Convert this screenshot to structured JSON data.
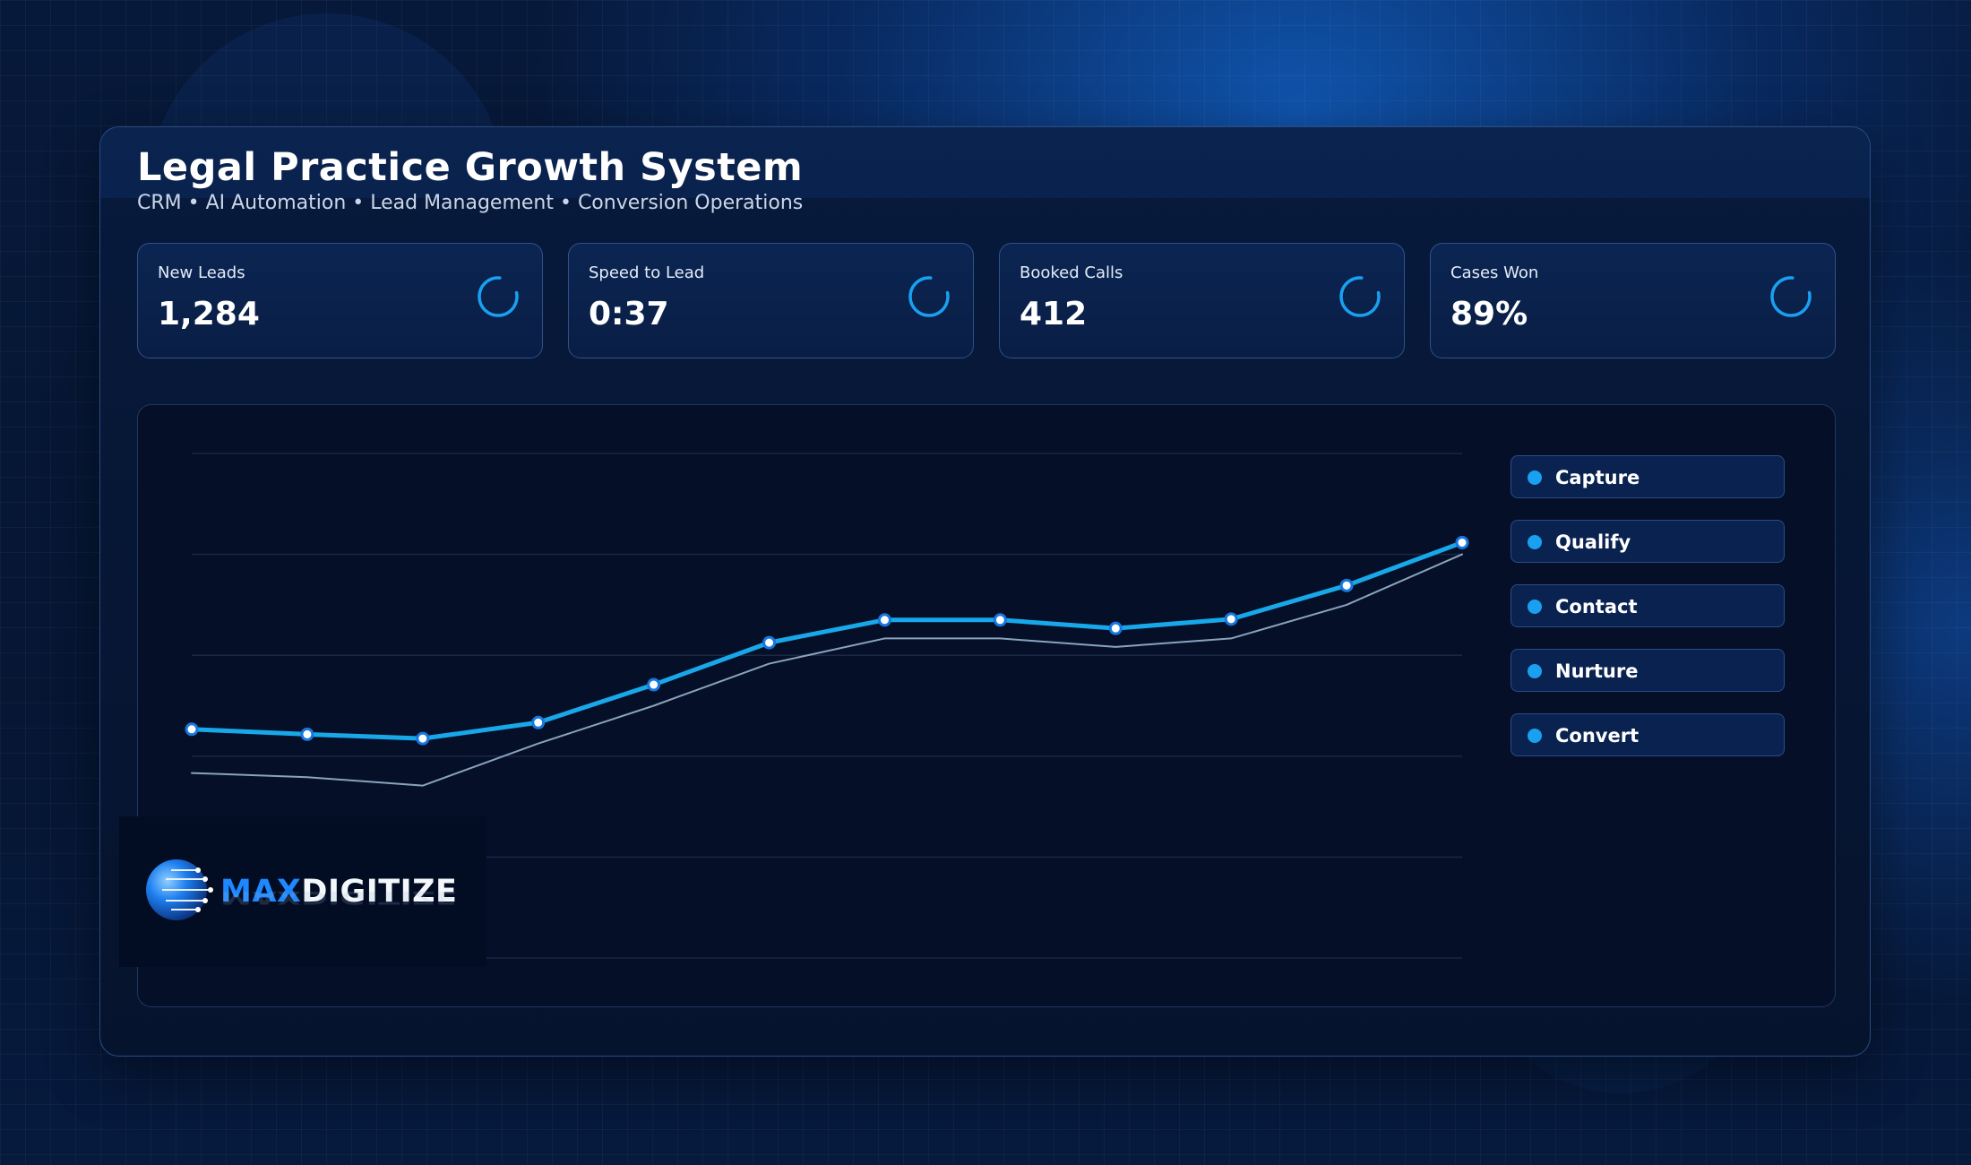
{
  "header": {
    "title": "Legal Practice Growth System",
    "subtitle": "CRM • AI Automation • Lead Management • Conversion Operations"
  },
  "stats": [
    {
      "label": "New Leads",
      "value": "1,284",
      "icon": "refresh-icon"
    },
    {
      "label": "Speed to Lead",
      "value": "0:37",
      "icon": "refresh-icon"
    },
    {
      "label": "Booked Calls",
      "value": "412",
      "icon": "refresh-icon"
    },
    {
      "label": "Cases Won",
      "value": "89%",
      "icon": "refresh-icon"
    }
  ],
  "legend": {
    "items": [
      {
        "label": "Capture"
      },
      {
        "label": "Qualify"
      },
      {
        "label": "Contact"
      },
      {
        "label": "Nurture"
      },
      {
        "label": "Convert"
      }
    ]
  },
  "logo": {
    "part1": "MAX",
    "part2": "DIGITIZE"
  },
  "colors": {
    "accent": "#18a8ea",
    "secondary_line": "#8aa3bd",
    "marker_fill": "#ffffff",
    "legend_dot": "#1aa0f0"
  },
  "chart_data": {
    "type": "line",
    "x": [
      1,
      2,
      3,
      4,
      5,
      6,
      7,
      8,
      9,
      10,
      11,
      12
    ],
    "series": [
      {
        "values": [
          27.2,
          26.6,
          26.1,
          28.0,
          32.5,
          37.5,
          40.2,
          40.2,
          39.2,
          40.3,
          44.3,
          49.4
        ]
      },
      {
        "values": [
          22.0,
          21.5,
          20.5,
          25.5,
          30.0,
          35.0,
          38.0,
          38.0,
          37.0,
          38.0,
          42.0,
          48.0
        ]
      }
    ],
    "ylim": [
      0,
      60
    ],
    "grid": true,
    "legend": "right"
  }
}
